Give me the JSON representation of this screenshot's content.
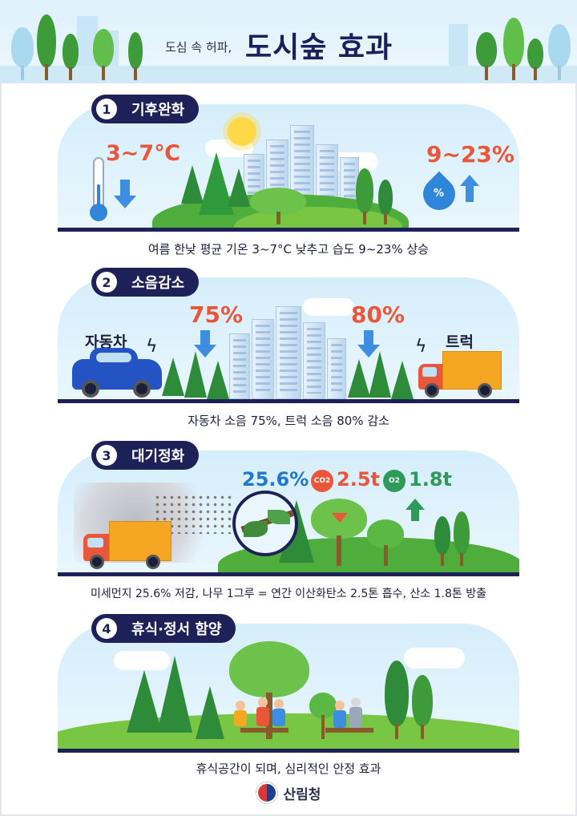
{
  "header": {
    "subtitle": "도심 속 허파,",
    "title": "도시숲 효과"
  },
  "sections": [
    {
      "number": "1",
      "label": "기후완화",
      "stat_temp": "3~7℃",
      "stat_humidity": "9~23%",
      "humidity_icon_label": "%",
      "caption": "여름 한낮 평균 기온 3~7°C 낮추고 습도 9~23% 상승"
    },
    {
      "number": "2",
      "label": "소음감소",
      "car_label": "자동차",
      "truck_label": "트럭",
      "stat_car": "75%",
      "stat_truck": "80%",
      "caption": "자동차 소음 75%, 트럭 소음 80% 감소"
    },
    {
      "number": "3",
      "label": "대기정화",
      "stat_dust": "25.6%",
      "co2_label": "CO2",
      "stat_co2": "2.5t",
      "o2_label": "O2",
      "stat_o2": "1.8t",
      "caption": "미세먼지 25.6% 저감, 나무 1그루 = 연간 이산화탄소 2.5톤 흡수, 산소 1.8톤 방출"
    },
    {
      "number": "4",
      "label": "휴식·정서 함양",
      "caption": "휴식공간이 되며, 심리적인 안정 효과"
    }
  ],
  "footer": {
    "org_name": "산림청"
  },
  "colors": {
    "navy": "#1d2158",
    "accent_orange": "#e9563a",
    "accent_blue": "#1f78d1",
    "forest_green": "#2e8b3a"
  }
}
